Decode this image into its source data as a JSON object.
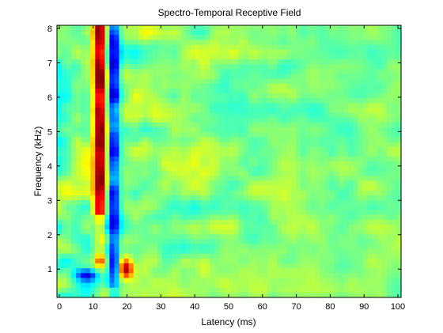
{
  "chart_data": {
    "type": "heatmap",
    "title": "Spectro-Temporal Receptive Field",
    "xlabel": "Latency (ms)",
    "ylabel": "Frequency (kHz)",
    "xlim": [
      0,
      100
    ],
    "ylim": [
      0.2,
      8.0
    ],
    "xticks": [
      0,
      10,
      20,
      30,
      40,
      50,
      60,
      70,
      80,
      90,
      100
    ],
    "xticklabels": [
      "0",
      "10",
      "20",
      "30",
      "40",
      "50",
      "60",
      "70",
      "80",
      "90",
      "100"
    ],
    "yticks": [
      1,
      2,
      3,
      4,
      5,
      6,
      7,
      8
    ],
    "yticklabels": [
      "1",
      "2",
      "3",
      "4",
      "5",
      "6",
      "7",
      "8"
    ],
    "colormap": "jet",
    "grid": false,
    "legend": "none",
    "features": [
      {
        "name": "excitatory-band",
        "latency_ms": 12.5,
        "freq_range_khz": [
          2.5,
          8.0
        ],
        "peak_value": 0.95
      },
      {
        "name": "inhibitory-band",
        "latency_ms": 16.5,
        "freq_range_khz": [
          0.5,
          8.0
        ],
        "peak_value": -0.9
      },
      {
        "name": "secondary-excitation",
        "latency_ms": 20,
        "freq_range_khz": [
          0.8,
          1.2
        ],
        "peak_value": 0.8
      }
    ]
  }
}
